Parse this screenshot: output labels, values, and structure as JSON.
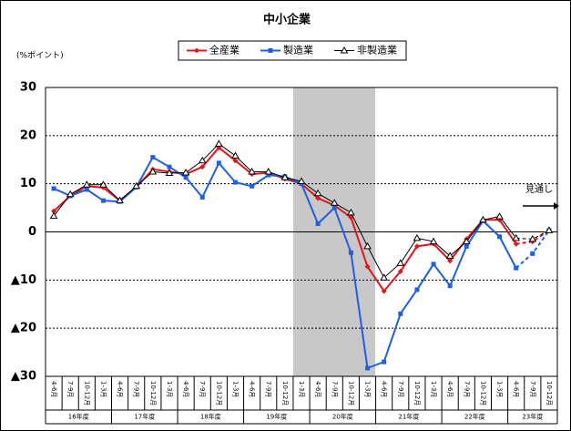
{
  "chart_data": {
    "type": "line",
    "title": "中小企業",
    "ylabel": "(%ポイント)",
    "categories": [
      "4-6月",
      "7-9月",
      "10-12月",
      "1-3月",
      "4-6月",
      "7-9月",
      "10-12月",
      "1-3月",
      "4-6月",
      "7-9月",
      "10-12月",
      "1-3月",
      "4-6月",
      "7-9月",
      "10-12月",
      "1-3月",
      "4-6月",
      "7-9月",
      "10-12月",
      "1-3月",
      "4-6月",
      "7-9月",
      "10-12月",
      "1-3月",
      "4-6月",
      "7-9月",
      "10-12月",
      "1-3月",
      "4-6月",
      "7-9月",
      "10-12月"
    ],
    "year_groups": [
      "16年度",
      "17年度",
      "18年度",
      "19年度",
      "20年度",
      "21年度",
      "22年度",
      "23年度"
    ],
    "series": [
      {
        "name": "全産業",
        "color": "#e8141b",
        "marker": "diamond",
        "values": [
          4.3,
          7.5,
          9.5,
          9.2,
          6.5,
          9.3,
          13,
          12.5,
          12,
          13.5,
          17.5,
          14.8,
          12,
          12.3,
          11,
          10,
          7,
          5.5,
          3,
          -7.2,
          -12.3,
          -8.2,
          -3,
          -2.5,
          -6,
          -1.5,
          2.5,
          2.5,
          -2.5,
          -2,
          0.3
        ]
      },
      {
        "name": "製造業",
        "color": "#1f5fe6",
        "marker": "square",
        "values": [
          9,
          7.5,
          8.8,
          6.5,
          6.3,
          9.3,
          15.5,
          13.5,
          11.3,
          7.2,
          14.3,
          10.3,
          9.5,
          11.8,
          11.5,
          10,
          1.7,
          5,
          -4.3,
          -28.3,
          -27,
          -17,
          -12,
          -6.7,
          -11.2,
          -3,
          2.3,
          -1,
          -7.5,
          -4.5,
          0.3
        ]
      },
      {
        "name": "非製造業",
        "color": "#000000",
        "marker": "triangle",
        "values": [
          3.3,
          7.8,
          9.8,
          9.8,
          6.5,
          9.5,
          12.5,
          12.2,
          12.3,
          14.8,
          18.3,
          15.8,
          12.5,
          12.5,
          11.3,
          10.5,
          8,
          6,
          4,
          -3,
          -9.5,
          -6.5,
          -1.3,
          -2,
          -5,
          -2,
          2.5,
          3.2,
          -1.3,
          -1.5,
          0.3
        ]
      }
    ],
    "ylim": [
      -30,
      30
    ],
    "yticks": [
      30,
      20,
      10,
      0,
      {
        "value": -10,
        "label": "▲10"
      },
      {
        "value": -20,
        "label": "▲20"
      },
      {
        "value": -30,
        "label": "▲30"
      }
    ],
    "grid": true,
    "annotation": "見通し"
  }
}
